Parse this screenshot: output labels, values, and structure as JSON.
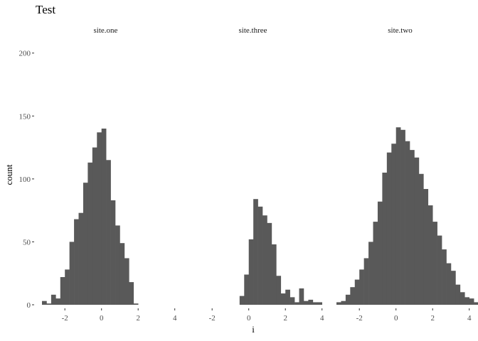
{
  "chart_data": {
    "type": "bar",
    "title": "Test",
    "xlabel": "i",
    "ylabel": "count",
    "xlim": [
      -3.6,
      4.05
    ],
    "ylim": [
      0,
      210
    ],
    "xticks": [
      -2,
      0,
      2,
      4
    ],
    "xtick_labels": [
      "-2",
      "0",
      "2",
      "4"
    ],
    "yticks": [
      0,
      50,
      100,
      150,
      200
    ],
    "ytick_labels": [
      "0",
      "50",
      "100",
      "150",
      "200"
    ],
    "bar_color": "#595959",
    "grid": false,
    "binwidth": 0.25,
    "facets": [
      {
        "label": "site.one",
        "x_start": -3.25,
        "values": [
          3,
          1,
          8,
          5,
          22,
          28,
          50,
          68,
          73,
          97,
          113,
          125,
          137,
          140,
          115,
          83,
          63,
          49,
          37,
          18,
          1
        ]
      },
      {
        "label": "site.three",
        "x_start": -0.5,
        "values": [
          7,
          24,
          52,
          84,
          78,
          71,
          65,
          48,
          23,
          9,
          12,
          6,
          2,
          13,
          3,
          4,
          2,
          2,
          0
        ]
      },
      {
        "label": "site.two",
        "x_start": -3.25,
        "values": [
          2,
          3,
          8,
          14,
          20,
          28,
          37,
          50,
          66,
          82,
          105,
          121,
          128,
          141,
          139,
          130,
          123,
          117,
          104,
          92,
          79,
          66,
          55,
          44,
          33,
          27,
          16,
          10,
          6,
          5,
          2,
          1,
          0,
          1
        ]
      }
    ]
  }
}
